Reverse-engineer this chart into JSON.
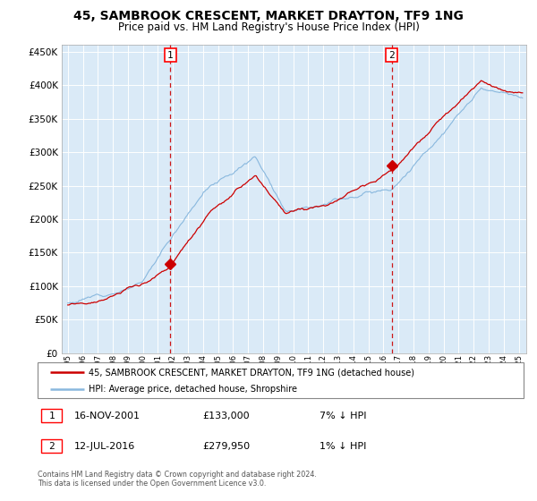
{
  "title1": "45, SAMBROOK CRESCENT, MARKET DRAYTON, TF9 1NG",
  "title2": "Price paid vs. HM Land Registry's House Price Index (HPI)",
  "legend_line1": "45, SAMBROOK CRESCENT, MARKET DRAYTON, TF9 1NG (detached house)",
  "legend_line2": "HPI: Average price, detached house, Shropshire",
  "ann1_date": "16-NOV-2001",
  "ann1_price": "£133,000",
  "ann1_pct": "7% ↓ HPI",
  "ann2_date": "12-JUL-2016",
  "ann2_price": "£279,950",
  "ann2_pct": "1% ↓ HPI",
  "footnote1": "Contains HM Land Registry data © Crown copyright and database right 2024.",
  "footnote2": "This data is licensed under the Open Government Licence v3.0.",
  "bg_color": "#daeaf7",
  "grid_color": "#ffffff",
  "hpi_color": "#89b8de",
  "price_color": "#cc0000",
  "dashed_color": "#cc0000",
  "ylim_lo": 0,
  "ylim_hi": 460000,
  "yticks": [
    0,
    50000,
    100000,
    150000,
    200000,
    250000,
    300000,
    350000,
    400000,
    450000
  ],
  "sale1_t": 2001.833,
  "sale1_price": 133000,
  "sale2_t": 2016.542,
  "sale2_price": 279950
}
